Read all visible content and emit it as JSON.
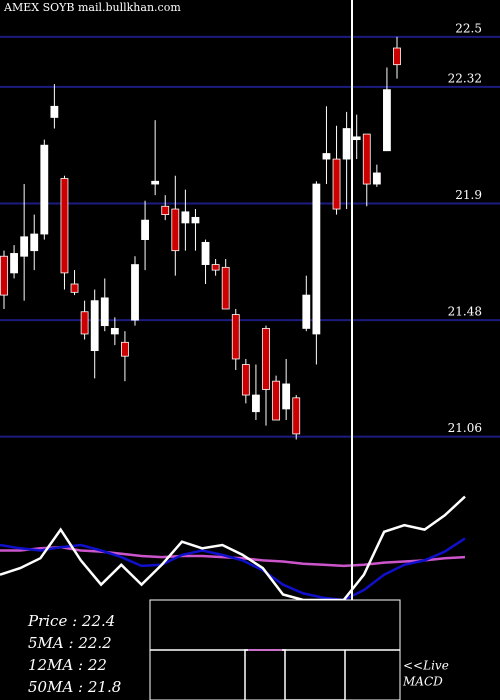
{
  "chart_data": {
    "type": "candlestick",
    "title": "AMEX  SOYB mail.bullkhan.com",
    "ylim": [
      20.94,
      22.633
    ],
    "yticks": [
      22.5,
      22.32,
      21.9,
      21.48,
      21.06
    ],
    "grid": true,
    "up_color": "#ffffff",
    "down_color": "#cc0000",
    "grid_color": "#1c1c80",
    "candles": [
      {
        "open": 21.71,
        "high": 21.73,
        "low": 21.52,
        "close": 21.57
      },
      {
        "open": 21.65,
        "high": 21.75,
        "low": 21.63,
        "close": 21.72
      },
      {
        "open": 21.71,
        "high": 21.97,
        "low": 21.55,
        "close": 21.78
      },
      {
        "open": 21.73,
        "high": 21.86,
        "low": 21.66,
        "close": 21.79
      },
      {
        "open": 21.79,
        "high": 22.13,
        "low": 21.77,
        "close": 22.11
      },
      {
        "open": 22.21,
        "high": 22.33,
        "low": 22.17,
        "close": 22.25
      },
      {
        "open": 21.99,
        "high": 22.0,
        "low": 21.59,
        "close": 21.65
      },
      {
        "open": 21.61,
        "high": 21.66,
        "low": 21.57,
        "close": 21.58
      },
      {
        "open": 21.51,
        "high": 21.55,
        "low": 21.41,
        "close": 21.43
      },
      {
        "open": 21.37,
        "high": 21.59,
        "low": 21.27,
        "close": 21.55
      },
      {
        "open": 21.46,
        "high": 21.63,
        "low": 21.44,
        "close": 21.56
      },
      {
        "open": 21.43,
        "high": 21.49,
        "low": 21.39,
        "close": 21.45
      },
      {
        "open": 21.4,
        "high": 21.44,
        "low": 21.26,
        "close": 21.35
      },
      {
        "open": 21.48,
        "high": 21.71,
        "low": 21.46,
        "close": 21.68
      },
      {
        "open": 21.77,
        "high": 21.91,
        "low": 21.66,
        "close": 21.84
      },
      {
        "open": 21.97,
        "high": 22.2,
        "low": 21.93,
        "close": 21.98
      },
      {
        "open": 21.89,
        "high": 21.93,
        "low": 21.84,
        "close": 21.86
      },
      {
        "open": 21.88,
        "high": 22.0,
        "low": 21.64,
        "close": 21.73
      },
      {
        "open": 21.83,
        "high": 21.95,
        "low": 21.73,
        "close": 21.87
      },
      {
        "open": 21.83,
        "high": 21.88,
        "low": 21.73,
        "close": 21.85
      },
      {
        "open": 21.68,
        "high": 21.77,
        "low": 21.61,
        "close": 21.76
      },
      {
        "open": 21.68,
        "high": 21.7,
        "low": 21.64,
        "close": 21.66
      },
      {
        "open": 21.67,
        "high": 21.7,
        "low": 21.52,
        "close": 21.52
      },
      {
        "open": 21.5,
        "high": 21.52,
        "low": 21.3,
        "close": 21.34
      },
      {
        "open": 21.32,
        "high": 21.34,
        "low": 21.18,
        "close": 21.21
      },
      {
        "open": 21.15,
        "high": 21.32,
        "low": 21.12,
        "close": 21.21
      },
      {
        "open": 21.45,
        "high": 21.46,
        "low": 21.1,
        "close": 21.23
      },
      {
        "open": 21.26,
        "high": 21.28,
        "low": 21.12,
        "close": 21.12
      },
      {
        "open": 21.16,
        "high": 21.34,
        "low": 21.12,
        "close": 21.25
      },
      {
        "open": 21.2,
        "high": 21.21,
        "low": 21.05,
        "close": 21.07
      },
      {
        "open": 21.45,
        "high": 21.64,
        "low": 21.44,
        "close": 21.57
      },
      {
        "open": 21.43,
        "high": 21.98,
        "low": 21.32,
        "close": 21.97
      },
      {
        "open": 22.06,
        "high": 22.25,
        "low": 21.97,
        "close": 22.08
      },
      {
        "open": 22.06,
        "high": 22.18,
        "low": 21.86,
        "close": 21.88
      },
      {
        "open": 22.06,
        "high": 22.23,
        "low": 21.88,
        "close": 22.17
      },
      {
        "open": 22.13,
        "high": 22.22,
        "low": 22.06,
        "close": 22.14
      },
      {
        "open": 22.15,
        "high": 22.15,
        "low": 21.89,
        "close": 21.97
      },
      {
        "open": 21.97,
        "high": 22.04,
        "low": 21.96,
        "close": 22.01
      },
      {
        "open": 22.09,
        "high": 22.39,
        "low": 22.09,
        "close": 22.31
      },
      {
        "open": 22.46,
        "high": 22.5,
        "low": 22.35,
        "close": 22.4
      }
    ],
    "indicator": {
      "ylim": [
        0,
        100
      ],
      "series": [
        {
          "color": "#cc55cc",
          "values": [
            45,
            45,
            47,
            48,
            45,
            44,
            42,
            40,
            39,
            40,
            40,
            39,
            38,
            36,
            35,
            33,
            32,
            31,
            32,
            34,
            35,
            36,
            38,
            39
          ]
        },
        {
          "color": "#1010cc",
          "values": [
            50,
            47,
            45,
            48,
            50,
            45,
            39,
            31,
            32,
            41,
            45,
            41,
            36,
            27,
            14,
            6,
            2,
            0,
            9,
            23,
            32,
            36,
            44,
            56
          ]
        },
        {
          "color": "#ffffff",
          "values": [
            23,
            29,
            38,
            64,
            36,
            14,
            32,
            14,
            32,
            53,
            47,
            50,
            41,
            29,
            5,
            0,
            0,
            0,
            23,
            62,
            68,
            64,
            77,
            94
          ]
        }
      ]
    },
    "info_lines": [
      "Price   : 22.4",
      "5MA : 22.2",
      "12MA : 22",
      "50MA : 21.8"
    ],
    "live_label": "<<Live",
    "macd_label": "MACD"
  }
}
